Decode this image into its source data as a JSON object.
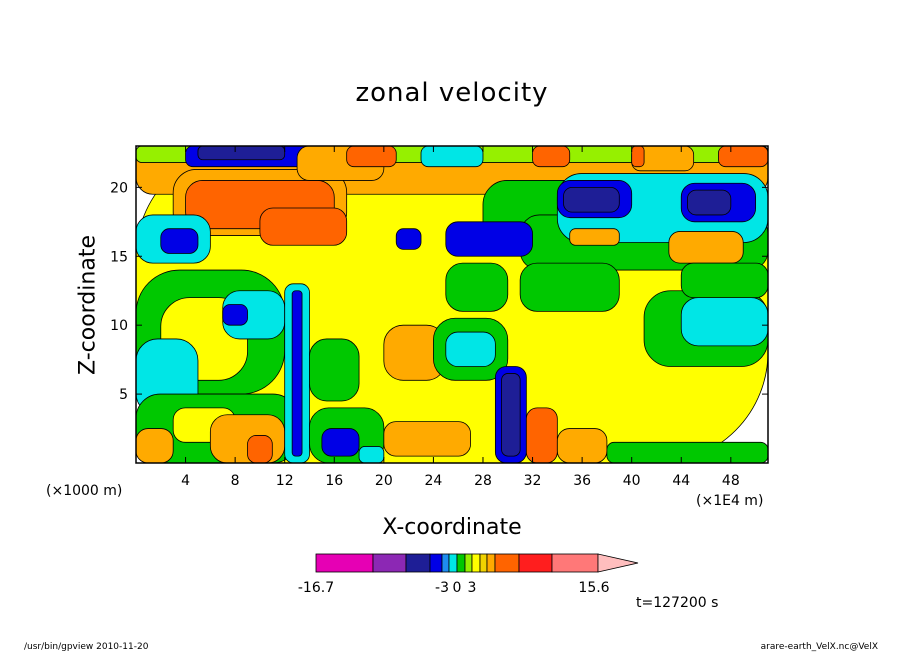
{
  "chart_data": {
    "type": "heatmap",
    "title": "zonal velocity",
    "xlabel": "X-coordinate",
    "ylabel": "Z-coordinate",
    "x_unit_left": "(×1000 m)",
    "x_unit_right": "(×1E4 m)",
    "x_ticks": [
      4,
      8,
      12,
      16,
      20,
      24,
      28,
      32,
      36,
      40,
      44,
      48
    ],
    "y_ticks": [
      5,
      10,
      15,
      20
    ],
    "xlim": [
      0,
      51
    ],
    "ylim": [
      0,
      23
    ],
    "colorbar": {
      "colors": [
        "#e600b4",
        "#8c28b4",
        "#1e1e96",
        "#0000e6",
        "#1e8cf0",
        "#00e6e6",
        "#00c800",
        "#96f000",
        "#ffff00",
        "#f0d200",
        "#ffaa00",
        "#ff6400",
        "#ff1e1e",
        "#ff7878",
        "#ffbebe"
      ],
      "tick_labels": [
        "-16.7",
        "-3",
        "0",
        "3",
        "15.6"
      ],
      "extend": "max"
    },
    "annotation": "t=127200 s",
    "regions": [
      {
        "x0": 0,
        "x1": 51,
        "y0": 0,
        "y1": 23,
        "color": "#ffff00"
      },
      {
        "x0": 0,
        "x1": 51,
        "y0": 19.5,
        "y1": 23,
        "color": "#ffaa00"
      },
      {
        "x0": 0,
        "x1": 51,
        "y0": 21.8,
        "y1": 23,
        "color": "#96f000"
      },
      {
        "x0": 3,
        "x1": 17,
        "y0": 16.5,
        "y1": 21.3,
        "color": "#ffaa00"
      },
      {
        "x0": 4,
        "x1": 16,
        "y0": 17,
        "y1": 20.5,
        "color": "#ff6400"
      },
      {
        "x0": 10,
        "x1": 17,
        "y0": 15.8,
        "y1": 18.5,
        "color": "#ff6400"
      },
      {
        "x0": 28,
        "x1": 43,
        "y0": 15.5,
        "y1": 20.5,
        "color": "#00c800"
      },
      {
        "x0": 31,
        "x1": 51,
        "y0": 14,
        "y1": 18,
        "color": "#00c800"
      },
      {
        "x0": 34,
        "x1": 51,
        "y0": 16,
        "y1": 21,
        "color": "#00e6e6"
      },
      {
        "x0": 34,
        "x1": 40,
        "y0": 17.8,
        "y1": 20.5,
        "color": "#0000e6"
      },
      {
        "x0": 34.5,
        "x1": 39,
        "y0": 18.2,
        "y1": 20,
        "color": "#1e1e96"
      },
      {
        "x0": 44,
        "x1": 50,
        "y0": 17.5,
        "y1": 20.3,
        "color": "#0000e6"
      },
      {
        "x0": 44.5,
        "x1": 48,
        "y0": 18,
        "y1": 19.8,
        "color": "#1e1e96"
      },
      {
        "x0": 43,
        "x1": 49,
        "y0": 14.5,
        "y1": 16.8,
        "color": "#ffaa00"
      },
      {
        "x0": 35,
        "x1": 39,
        "y0": 15.8,
        "y1": 17,
        "color": "#ffaa00"
      },
      {
        "x0": 4,
        "x1": 16,
        "y0": 21.5,
        "y1": 23,
        "color": "#0000e6"
      },
      {
        "x0": 5,
        "x1": 12,
        "y0": 22,
        "y1": 23,
        "color": "#1e1e96"
      },
      {
        "x0": 0,
        "x1": 6,
        "y0": 14.5,
        "y1": 18,
        "color": "#00e6e6"
      },
      {
        "x0": 2,
        "x1": 5,
        "y0": 15.2,
        "y1": 17,
        "color": "#0000e6"
      },
      {
        "x0": 25,
        "x1": 32,
        "y0": 15,
        "y1": 17.5,
        "color": "#0000e6"
      },
      {
        "x0": 21,
        "x1": 23,
        "y0": 15.5,
        "y1": 17,
        "color": "#0000e6"
      },
      {
        "x0": 23,
        "x1": 28,
        "y0": 21.5,
        "y1": 23,
        "color": "#00e6e6"
      },
      {
        "x0": 13,
        "x1": 20,
        "y0": 20.5,
        "y1": 23,
        "color": "#ffaa00"
      },
      {
        "x0": 17,
        "x1": 21,
        "y0": 21.5,
        "y1": 23,
        "color": "#ff6400"
      },
      {
        "x0": 40,
        "x1": 45,
        "y0": 21.2,
        "y1": 23,
        "color": "#ffaa00"
      },
      {
        "x0": 40,
        "x1": 41,
        "y0": 21.5,
        "y1": 23,
        "color": "#ff6400"
      },
      {
        "x0": 32,
        "x1": 35,
        "y0": 21.5,
        "y1": 23,
        "color": "#ff6400"
      },
      {
        "x0": 47,
        "x1": 51,
        "y0": 21.5,
        "y1": 23,
        "color": "#ff6400"
      },
      {
        "x0": 0,
        "x1": 12,
        "y0": 5,
        "y1": 14,
        "color": "#00c800"
      },
      {
        "x0": 2,
        "x1": 9,
        "y0": 6,
        "y1": 12,
        "color": "#ffff00"
      },
      {
        "x0": 7,
        "x1": 12,
        "y0": 9,
        "y1": 12.5,
        "color": "#00e6e6"
      },
      {
        "x0": 7,
        "x1": 9,
        "y0": 10,
        "y1": 11.5,
        "color": "#0000e6"
      },
      {
        "x0": 0,
        "x1": 5,
        "y0": 3.5,
        "y1": 9,
        "color": "#00e6e6"
      },
      {
        "x0": 0,
        "x1": 13,
        "y0": 0,
        "y1": 5,
        "color": "#00c800"
      },
      {
        "x0": 3,
        "x1": 8,
        "y0": 1.5,
        "y1": 4,
        "color": "#ffff00"
      },
      {
        "x0": 0,
        "x1": 3,
        "y0": 0,
        "y1": 2.5,
        "color": "#ffaa00"
      },
      {
        "x0": 6,
        "x1": 12,
        "y0": 0,
        "y1": 3.5,
        "color": "#ffaa00"
      },
      {
        "x0": 9,
        "x1": 11,
        "y0": 0,
        "y1": 2,
        "color": "#ff6400"
      },
      {
        "x0": 12,
        "x1": 14,
        "y0": 0,
        "y1": 13,
        "color": "#00e6e6"
      },
      {
        "x0": 12.6,
        "x1": 13.4,
        "y0": 0.5,
        "y1": 12.5,
        "color": "#0000e6"
      },
      {
        "x0": 14,
        "x1": 20,
        "y0": 0,
        "y1": 4,
        "color": "#00c800"
      },
      {
        "x0": 15,
        "x1": 18,
        "y0": 0.5,
        "y1": 2.5,
        "color": "#0000e6"
      },
      {
        "x0": 20,
        "x1": 27,
        "y0": 0.5,
        "y1": 3,
        "color": "#ffaa00"
      },
      {
        "x0": 18,
        "x1": 20,
        "y0": 0,
        "y1": 1.2,
        "color": "#00e6e6"
      },
      {
        "x0": 14,
        "x1": 18,
        "y0": 4.5,
        "y1": 9,
        "color": "#00c800"
      },
      {
        "x0": 20,
        "x1": 25,
        "y0": 6,
        "y1": 10,
        "color": "#ffaa00"
      },
      {
        "x0": 24,
        "x1": 30,
        "y0": 6,
        "y1": 10.5,
        "color": "#00c800"
      },
      {
        "x0": 25,
        "x1": 29,
        "y0": 7,
        "y1": 9.5,
        "color": "#00e6e6"
      },
      {
        "x0": 29,
        "x1": 31.5,
        "y0": 0,
        "y1": 7,
        "color": "#0000e6"
      },
      {
        "x0": 29.5,
        "x1": 31,
        "y0": 0.5,
        "y1": 6.5,
        "color": "#1e1e96"
      },
      {
        "x0": 31.5,
        "x1": 34,
        "y0": 0,
        "y1": 4,
        "color": "#ff6400"
      },
      {
        "x0": 34,
        "x1": 38,
        "y0": 0,
        "y1": 2.5,
        "color": "#ffaa00"
      },
      {
        "x0": 38,
        "x1": 51,
        "y0": 0,
        "y1": 1.5,
        "color": "#00c800"
      },
      {
        "x0": 41,
        "x1": 51,
        "y0": 7,
        "y1": 12.5,
        "color": "#00c800"
      },
      {
        "x0": 44,
        "x1": 51,
        "y0": 8.5,
        "y1": 12,
        "color": "#00e6e6"
      },
      {
        "x0": 44,
        "x1": 51,
        "y0": 12,
        "y1": 14.5,
        "color": "#00c800"
      },
      {
        "x0": 25,
        "x1": 30,
        "y0": 11,
        "y1": 14.5,
        "color": "#00c800"
      },
      {
        "x0": 31,
        "x1": 39,
        "y0": 11,
        "y1": 14.5,
        "color": "#00c800"
      }
    ]
  },
  "footer": {
    "left": "/usr/bin/gpview   2010-11-20",
    "right": "arare-earth_VelX.nc@VelX"
  }
}
